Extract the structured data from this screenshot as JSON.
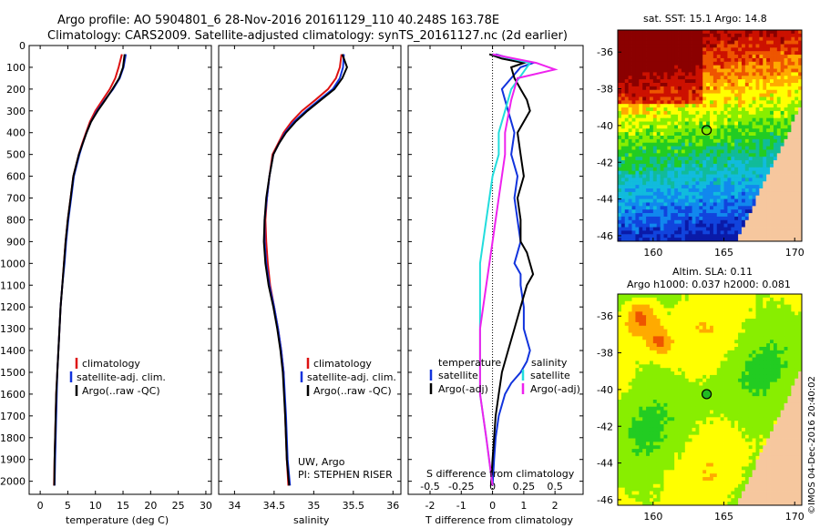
{
  "title": {
    "line1": "Argo profile: AO 5904801_6 28-Nov-2016 20161129_110 40.248S 163.78E",
    "line2": "Climatology: CARS2009. Satellite-adjusted climatology: synTS_20161127.nc (2d earlier)"
  },
  "colors": {
    "clim": "#dd1111",
    "sat": "#1133dd",
    "argo": "#000000",
    "sal_sat": "#22dddd",
    "sal_argo": "#ee22ee"
  },
  "chart_data": [
    {
      "type": "line",
      "id": "temperature",
      "xlabel": "temperature (deg C)",
      "ylabel": "",
      "xlim": [
        -2,
        31
      ],
      "ylim": [
        2060,
        0
      ],
      "xticks": [
        0,
        5,
        10,
        15,
        20,
        25,
        30
      ],
      "yticks": [
        0,
        100,
        200,
        300,
        400,
        500,
        600,
        700,
        800,
        900,
        1000,
        1100,
        1200,
        1300,
        1400,
        1500,
        1600,
        1700,
        1800,
        1900,
        2000
      ],
      "legend": [
        "climatology",
        "satellite-adj. clim.",
        "Argo(..raw -QC)"
      ],
      "series": [
        {
          "name": "climatology",
          "color_key": "clim",
          "x": [
            14.8,
            14.2,
            13.6,
            12.6,
            11.3,
            10.0,
            9.0,
            8.3,
            7.6,
            7.0,
            6.5,
            6.0,
            5.5,
            5.0,
            4.6,
            4.3,
            4.0,
            3.7,
            3.5,
            3.3,
            3.1,
            2.9,
            2.8,
            2.7,
            2.6,
            2.5
          ],
          "y": [
            40,
            100,
            150,
            200,
            250,
            300,
            350,
            400,
            450,
            500,
            550,
            600,
            700,
            800,
            900,
            1000,
            1100,
            1200,
            1300,
            1400,
            1500,
            1600,
            1700,
            1800,
            1900,
            2020
          ]
        },
        {
          "name": "satellite-adj. clim.",
          "color_key": "sat",
          "x": [
            15.5,
            15.1,
            14.4,
            13.2,
            11.7,
            10.3,
            9.2,
            8.4,
            7.7,
            7.1,
            6.6,
            6.1,
            5.6,
            5.1,
            4.7,
            4.4,
            4.0,
            3.7,
            3.5,
            3.3,
            3.1,
            3.0,
            2.9,
            2.8,
            2.7,
            2.6
          ],
          "y": [
            40,
            100,
            150,
            200,
            250,
            300,
            350,
            400,
            450,
            500,
            550,
            600,
            700,
            800,
            900,
            1000,
            1100,
            1200,
            1300,
            1400,
            1500,
            1600,
            1700,
            1800,
            1900,
            2020
          ]
        },
        {
          "name": "Argo(..raw -QC)",
          "color_key": "argo",
          "x": [
            15.3,
            15.0,
            14.3,
            13.1,
            11.8,
            10.4,
            9.2,
            8.4,
            7.7,
            7.0,
            6.5,
            6.0,
            5.5,
            5.0,
            4.6,
            4.3,
            4.0,
            3.7,
            3.5,
            3.3,
            3.1,
            2.9,
            2.8,
            2.7,
            2.6,
            2.55
          ],
          "y": [
            40,
            100,
            150,
            200,
            250,
            300,
            350,
            400,
            450,
            500,
            550,
            600,
            700,
            800,
            900,
            1000,
            1100,
            1200,
            1300,
            1400,
            1500,
            1600,
            1700,
            1800,
            1900,
            2020
          ]
        }
      ]
    },
    {
      "type": "line",
      "id": "salinity",
      "xlabel": "salinity",
      "ylabel": "",
      "xlim": [
        33.8,
        36.1
      ],
      "ylim": [
        2060,
        0
      ],
      "xticks": [
        34,
        34.5,
        35,
        35.5,
        36
      ],
      "legend": [
        "climatology",
        "satellite-adj. clim.",
        "Argo(..raw -QC)"
      ],
      "annotations": [
        "UW, Argo",
        "PI: STEPHEN RISER"
      ],
      "series": [
        {
          "name": "climatology",
          "color_key": "clim",
          "x": [
            35.35,
            35.33,
            35.28,
            35.18,
            35.02,
            34.85,
            34.72,
            34.62,
            34.55,
            34.48,
            34.44,
            34.41,
            34.39,
            34.4,
            34.42,
            34.45,
            34.5,
            34.55,
            34.59,
            34.62,
            34.64,
            34.66,
            34.68
          ],
          "y": [
            40,
            100,
            150,
            200,
            250,
            300,
            350,
            400,
            450,
            500,
            600,
            700,
            800,
            900,
            1000,
            1100,
            1200,
            1300,
            1400,
            1500,
            1700,
            1900,
            2020
          ]
        },
        {
          "name": "satellite-adj. clim.",
          "color_key": "sat",
          "x": [
            35.38,
            35.37,
            35.33,
            35.24,
            35.07,
            34.9,
            34.75,
            34.64,
            34.56,
            34.49,
            34.44,
            34.41,
            34.38,
            34.38,
            34.4,
            34.44,
            34.5,
            34.55,
            34.59,
            34.62,
            34.65,
            34.67,
            34.7
          ],
          "y": [
            40,
            100,
            150,
            200,
            250,
            300,
            350,
            400,
            450,
            500,
            600,
            700,
            800,
            900,
            1000,
            1100,
            1200,
            1300,
            1400,
            1500,
            1700,
            1900,
            2020
          ]
        },
        {
          "name": "Argo(..raw -QC)",
          "color_key": "argo",
          "x": [
            35.36,
            35.42,
            35.36,
            35.26,
            35.09,
            34.92,
            34.77,
            34.65,
            34.56,
            34.49,
            34.44,
            34.4,
            34.38,
            34.37,
            34.39,
            34.43,
            34.49,
            34.54,
            34.58,
            34.61,
            34.64,
            34.66,
            34.69
          ],
          "y": [
            40,
            100,
            150,
            200,
            250,
            300,
            350,
            400,
            450,
            500,
            600,
            700,
            800,
            900,
            1000,
            1100,
            1200,
            1300,
            1400,
            1500,
            1700,
            1900,
            2020
          ]
        }
      ]
    },
    {
      "type": "line",
      "id": "difference",
      "xlabel": "T difference from climatology",
      "ylabel": "",
      "xlabel2": "S difference from climatology",
      "xlim": [
        -2.7,
        2.9
      ],
      "ylim": [
        2060,
        0
      ],
      "xticks": [
        -2,
        -1,
        0,
        1,
        2
      ],
      "xticks2": [
        -0.5,
        -0.25,
        0,
        0.25,
        0.5
      ],
      "legend": {
        "temperature_heading": "temperature",
        "salinity_heading": "salinity",
        "items": [
          "satellite",
          "Argo(-adj)",
          "satellite",
          "Argo(-adj)"
        ]
      },
      "series": [
        {
          "name": "temperature satellite",
          "color_key": "sat",
          "x": [
            0.1,
            0.6,
            1.3,
            0.9,
            0.6,
            0.3,
            0.5,
            0.7,
            0.6,
            0.8,
            0.7,
            0.8,
            0.9,
            0.8,
            0.7,
            0.9,
            0.9,
            1.0,
            1.0,
            1.1,
            1.2,
            1.1,
            0.9,
            0.6,
            0.4,
            0.2,
            0.1,
            0.05,
            0.0
          ],
          "y": [
            40,
            60,
            80,
            100,
            150,
            200,
            300,
            400,
            500,
            600,
            700,
            800,
            900,
            950,
            1000,
            1050,
            1100,
            1200,
            1300,
            1350,
            1400,
            1450,
            1500,
            1550,
            1600,
            1700,
            1800,
            1900,
            2020
          ]
        },
        {
          "name": "temperature Argo(-adj)",
          "color_key": "argo",
          "x": [
            -0.1,
            0.3,
            1.0,
            0.6,
            0.7,
            0.9,
            1.1,
            1.2,
            0.8,
            0.9,
            1.0,
            0.8,
            0.9,
            0.9,
            1.1,
            1.2,
            1.3,
            1.1,
            0.9,
            0.7,
            0.5,
            0.3,
            0.2,
            0.1,
            0.05,
            0.0,
            -0.05
          ],
          "y": [
            40,
            60,
            80,
            100,
            150,
            200,
            250,
            300,
            400,
            500,
            600,
            700,
            800,
            900,
            950,
            1000,
            1050,
            1100,
            1200,
            1300,
            1400,
            1500,
            1600,
            1700,
            1800,
            1900,
            2020
          ]
        },
        {
          "name": "salinity satellite",
          "color_key": "sal_sat",
          "x": [
            0.0,
            0.3,
            0.25,
            0.15,
            0.1,
            0.05,
            0.05,
            0.0,
            -0.05,
            -0.1,
            -0.1,
            -0.1,
            -0.05,
            0.0
          ],
          "y": [
            40,
            80,
            120,
            200,
            300,
            400,
            500,
            600,
            800,
            1000,
            1300,
            1600,
            1800,
            2020
          ]
        },
        {
          "name": "salinity Argo(-adj)",
          "color_key": "sal_argo",
          "x": [
            0.0,
            0.35,
            0.5,
            0.2,
            0.15,
            0.1,
            0.1,
            0.05,
            0.0,
            -0.05,
            -0.1,
            -0.1,
            -0.05,
            0.0
          ],
          "y": [
            40,
            80,
            110,
            150,
            250,
            400,
            500,
            700,
            900,
            1100,
            1300,
            1600,
            1800,
            2020
          ]
        }
      ]
    },
    {
      "type": "heatmap",
      "id": "sst_map",
      "title": "sat. SST: 15.1 Argo: 14.8",
      "xlim": [
        157.5,
        170.5
      ],
      "ylim": [
        -46.3,
        -34.8
      ],
      "xticks": [
        160,
        165,
        170
      ],
      "yticks": [
        -36,
        -38,
        -40,
        -42,
        -44,
        -46
      ],
      "marker": {
        "lon": 163.78,
        "lat": -40.25
      }
    },
    {
      "type": "heatmap",
      "id": "sla_map",
      "title": "Altim. SLA: 0.11",
      "subtitle": "Argo h1000: 0.037 h2000: 0.081",
      "xlim": [
        157.5,
        170.5
      ],
      "ylim": [
        -46.3,
        -34.8
      ],
      "xticks": [
        160,
        165,
        170
      ],
      "yticks": [
        -36,
        -38,
        -40,
        -42,
        -44,
        -46
      ],
      "marker": {
        "lon": 163.78,
        "lat": -40.25
      }
    }
  ],
  "footer": {
    "credit": "©IMOS 04-Dec-2016 20:40:02"
  }
}
